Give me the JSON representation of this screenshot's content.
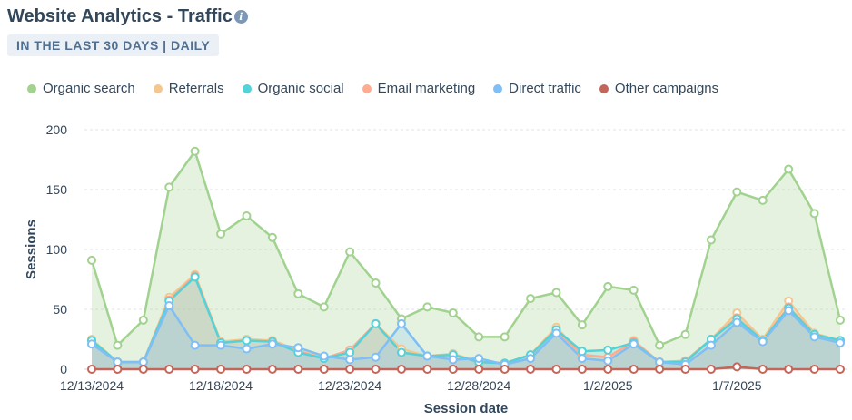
{
  "header": {
    "title": "Website Analytics - Traffic",
    "info_icon": "info-icon",
    "badge": "IN THE LAST 30 DAYS | DAILY"
  },
  "chart_data": {
    "type": "area",
    "xlabel": "Session date",
    "ylabel": "Sessions",
    "ylim": [
      0,
      200
    ],
    "yticks": [
      0,
      50,
      100,
      150,
      200
    ],
    "grid": true,
    "legend_position": "top",
    "x": [
      "12/13/2024",
      "12/14/2024",
      "12/15/2024",
      "12/16/2024",
      "12/17/2024",
      "12/18/2024",
      "12/19/2024",
      "12/20/2024",
      "12/21/2024",
      "12/22/2024",
      "12/23/2024",
      "12/24/2024",
      "12/25/2024",
      "12/26/2024",
      "12/27/2024",
      "12/28/2024",
      "12/29/2024",
      "12/30/2024",
      "12/31/2024",
      "1/1/2025",
      "1/2/2025",
      "1/3/2025",
      "1/4/2025",
      "1/5/2025",
      "1/6/2025",
      "1/7/2025",
      "1/8/2025",
      "1/9/2025",
      "1/10/2025",
      "1/11/2025"
    ],
    "xtick_labels": [
      "12/13/2024",
      "12/18/2024",
      "12/23/2024",
      "12/28/2024",
      "1/2/2025",
      "1/7/2025"
    ],
    "xtick_indices": [
      0,
      5,
      10,
      15,
      20,
      25
    ],
    "series": [
      {
        "name": "Organic search",
        "color": "#a2d28f",
        "values": [
          91,
          20,
          41,
          152,
          182,
          113,
          128,
          110,
          63,
          52,
          98,
          72,
          42,
          52,
          47,
          27,
          27,
          59,
          64,
          37,
          69,
          66,
          20,
          29,
          108,
          148,
          141,
          167,
          130,
          41
        ]
      },
      {
        "name": "Referrals",
        "color": "#f5c78e",
        "values": [
          25,
          6,
          6,
          60,
          79,
          23,
          25,
          24,
          16,
          9,
          16,
          38,
          17,
          11,
          13,
          6,
          5,
          12,
          35,
          12,
          10,
          24,
          6,
          7,
          25,
          47,
          25,
          57,
          30,
          24
        ]
      },
      {
        "name": "Organic social",
        "color": "#51d3d9",
        "values": [
          24,
          6,
          6,
          57,
          77,
          22,
          24,
          23,
          14,
          9,
          14,
          38,
          14,
          11,
          12,
          6,
          5,
          12,
          33,
          15,
          16,
          22,
          6,
          6,
          25,
          42,
          24,
          51,
          29,
          24
        ]
      },
      {
        "name": "Email marketing",
        "color": "#ffab91",
        "values": [
          24,
          6,
          6,
          58,
          78,
          22,
          24,
          23,
          15,
          9,
          16,
          38,
          14,
          11,
          12,
          6,
          5,
          12,
          33,
          12,
          10,
          23,
          6,
          7,
          25,
          43,
          24,
          52,
          29,
          24
        ]
      },
      {
        "name": "Direct traffic",
        "color": "#7fbff5",
        "values": [
          21,
          6,
          6,
          53,
          20,
          20,
          17,
          21,
          18,
          11,
          8,
          10,
          38,
          11,
          8,
          9,
          4,
          9,
          30,
          9,
          7,
          21,
          6,
          4,
          20,
          39,
          23,
          49,
          27,
          22
        ]
      },
      {
        "name": "Other campaigns",
        "color": "#c2665a",
        "values": [
          0,
          0,
          0,
          0,
          0,
          0,
          0,
          0,
          0,
          0,
          0,
          0,
          0,
          0,
          0,
          0,
          0,
          0,
          0,
          0,
          0,
          0,
          0,
          0,
          0,
          2,
          0,
          0,
          0,
          0
        ]
      }
    ]
  }
}
